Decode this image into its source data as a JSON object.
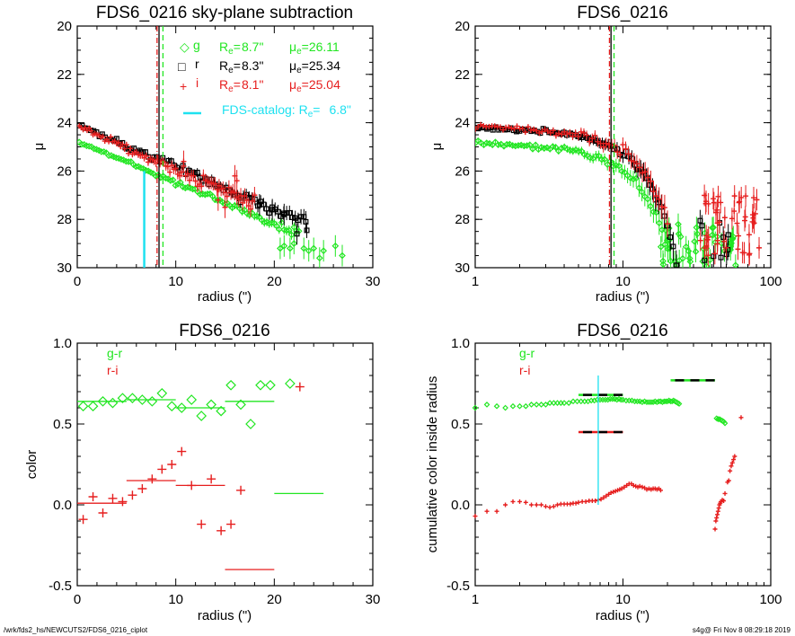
{
  "colors": {
    "g": "#22e622",
    "r": "#000000",
    "i": "#e61e1e",
    "catalog": "#1ee1f0",
    "axis": "#000000"
  },
  "footer": {
    "left": "/wrk/fds2_hs/NEWCUTS2/FDS6_0216_ciplot",
    "right": "s4g@  Fri Nov  8 08:29:18 2019"
  },
  "chart_data": [
    {
      "id": "profile-linear",
      "type": "scatter",
      "title": "FDS6_0216 sky-plane subtraction",
      "xlabel": "radius (\")",
      "ylabel": "μ",
      "xscale": "linear",
      "xlim": [
        0,
        30
      ],
      "ylim": [
        30,
        20
      ],
      "xticks": [
        0,
        10,
        20,
        30
      ],
      "xtick_labels": [
        "0",
        "10",
        "20",
        "30"
      ],
      "yticks": [
        20,
        22,
        24,
        26,
        28,
        30
      ],
      "ytick_labels": [
        "20",
        "22",
        "24",
        "26",
        "28",
        "30"
      ],
      "legend": {
        "placement": "top-right",
        "entries": [
          {
            "symbol": "◇",
            "band": "g",
            "re_label": "R",
            "re_sub": "e",
            "re_eq": "=",
            "re_value": "8.7\"",
            "mu_label": "μ",
            "mu_sub": "e",
            "mu_eq": "=",
            "mu_value": "26.11"
          },
          {
            "symbol": "□",
            "band": "r",
            "re_label": "R",
            "re_sub": "e",
            "re_eq": "=",
            "re_value": "8.3\"",
            "mu_label": "μ",
            "mu_sub": "e",
            "mu_eq": "=",
            "mu_value": "25.34"
          },
          {
            "symbol": "+",
            "band": "i",
            "re_label": "R",
            "re_sub": "e",
            "re_eq": "=",
            "re_value": "8.1\"",
            "mu_label": "μ",
            "mu_sub": "e",
            "mu_eq": "=",
            "mu_value": "25.04"
          }
        ],
        "catalog": {
          "label": "FDS-catalog: R",
          "sub": "e",
          "eq": "=",
          "value": "6.8\""
        }
      },
      "vlines": [
        {
          "x": 8.1,
          "band": "i",
          "style": "dashdot"
        },
        {
          "x": 8.3,
          "band": "r",
          "style": "solid"
        },
        {
          "x": 8.7,
          "band": "g",
          "style": "dashed"
        }
      ],
      "catalog_line": {
        "x": 6.8,
        "y_from": 30,
        "y_to": 26.0
      },
      "series": [
        {
          "name": "g",
          "marker": "diamond",
          "x0": 0.2,
          "x1": 22.5,
          "y0": 24.8,
          "y1": 28.6,
          "n": 90,
          "curve": 1.0,
          "noise": 0.05,
          "err": 0.1,
          "extra": [
            [
              21.0,
              29.1
            ],
            [
              22.0,
              29.0
            ],
            [
              23.0,
              29.2
            ],
            [
              23.5,
              29.3
            ],
            [
              24.0,
              29.2
            ],
            [
              24.6,
              29.6
            ],
            [
              25.0,
              29.3
            ],
            [
              26.2,
              29.1
            ],
            [
              26.9,
              29.5
            ],
            [
              21.6,
              29.2
            ],
            [
              20.6,
              29.2
            ]
          ]
        },
        {
          "name": "r",
          "marker": "square",
          "x0": 0.2,
          "x1": 23.3,
          "y0": 24.1,
          "y1": 28.2,
          "n": 80,
          "curve": 1.0,
          "noise": 0.07,
          "err": 0.15,
          "extra": [
            [
              22.3,
              28.6
            ],
            [
              21.0,
              27.8
            ],
            [
              19.8,
              27.6
            ],
            [
              18.5,
              27.4
            ],
            [
              23.2,
              28.1
            ]
          ]
        },
        {
          "name": "i",
          "marker": "plus",
          "x0": 0.2,
          "x1": 18.0,
          "y0": 24.15,
          "y1": 27.4,
          "n": 90,
          "curve": 1.0,
          "noise": 0.1,
          "err": 0.2,
          "extra": [
            [
              16.0,
              26.2
            ],
            [
              16.2,
              26.4
            ],
            [
              15.0,
              27.5
            ],
            [
              14.3,
              27.2
            ],
            [
              10.8,
              25.6
            ]
          ]
        }
      ]
    },
    {
      "id": "profile-log",
      "type": "scatter",
      "title": "FDS6_0216",
      "xlabel": "radius (\")",
      "ylabel": "μ",
      "xscale": "log",
      "xlim": [
        1,
        100
      ],
      "ylim": [
        30,
        20
      ],
      "xticks": [
        1,
        10,
        100
      ],
      "xtick_labels": [
        "1",
        "10",
        "100"
      ],
      "yticks": [
        20,
        22,
        24,
        26,
        28,
        30
      ],
      "ytick_labels": [
        "20",
        "22",
        "24",
        "26",
        "28",
        "30"
      ],
      "vlines": [
        {
          "x": 8.1,
          "band": "i",
          "style": "dashdot"
        },
        {
          "x": 8.3,
          "band": "r",
          "style": "solid"
        },
        {
          "x": 8.7,
          "band": "g",
          "style": "dashed"
        }
      ],
      "series": [
        {
          "name": "g",
          "marker": "diamond",
          "profile": "sersic",
          "y0": 24.85,
          "rs": 10.0,
          "k": 1.25,
          "xmin": 1.0,
          "xmax": 22.0,
          "n": 70,
          "noise": 0.06,
          "outer": {
            "xmin": 18,
            "xmax": 60,
            "ymin": 28.2,
            "ymax": 30.0,
            "n": 45
          }
        },
        {
          "name": "r",
          "marker": "square",
          "profile": "sersic",
          "y0": 24.2,
          "rs": 10.0,
          "k": 1.2,
          "xmin": 1.0,
          "xmax": 24.0,
          "n": 70,
          "noise": 0.06,
          "outer": {
            "xmin": 31,
            "xmax": 52,
            "ymin": 28.0,
            "ymax": 29.7,
            "n": 10
          }
        },
        {
          "name": "i",
          "marker": "plus",
          "profile": "sersic",
          "y0": 24.15,
          "rs": 10.0,
          "k": 1.15,
          "xmin": 1.0,
          "xmax": 20.0,
          "n": 70,
          "noise": 0.1,
          "outer": {
            "xmin": 32,
            "xmax": 85,
            "ymin": 27.0,
            "ymax": 29.5,
            "n": 50
          }
        }
      ]
    },
    {
      "id": "color-linear",
      "type": "scatter",
      "title": "FDS6_0216",
      "xlabel": "radius (\")",
      "ylabel": "color",
      "xscale": "linear",
      "xlim": [
        0,
        30
      ],
      "ylim": [
        -0.5,
        1.0
      ],
      "xticks": [
        0,
        10,
        20,
        30
      ],
      "xtick_labels": [
        "0",
        "10",
        "20",
        "30"
      ],
      "yticks": [
        -0.5,
        0.0,
        0.5,
        1.0
      ],
      "ytick_labels": [
        "-0.5",
        "0.0",
        "0.5",
        "1.0"
      ],
      "legend": {
        "placement": "top-left",
        "entries": [
          {
            "label": "g-r",
            "band": "g"
          },
          {
            "label": "r-i",
            "band": "i"
          }
        ]
      },
      "series": [
        {
          "name": "g-r",
          "marker": "diamond",
          "x": [
            0.6,
            1.6,
            2.6,
            3.6,
            4.6,
            5.6,
            6.6,
            7.6,
            8.6,
            9.6,
            10.6,
            11.6,
            12.6,
            13.6,
            14.6,
            15.6,
            16.6,
            17.6,
            18.6,
            19.6,
            21.6
          ],
          "y": [
            0.61,
            0.61,
            0.64,
            0.63,
            0.66,
            0.66,
            0.65,
            0.64,
            0.69,
            0.61,
            0.6,
            0.65,
            0.55,
            0.62,
            0.58,
            0.74,
            0.62,
            0.5,
            0.74,
            0.74,
            0.75
          ]
        },
        {
          "name": "r-i",
          "marker": "plus",
          "x": [
            0.6,
            1.6,
            2.6,
            3.6,
            4.6,
            5.6,
            6.6,
            7.6,
            8.6,
            9.6,
            10.6,
            11.6,
            12.6,
            13.6,
            14.6,
            15.6,
            16.6,
            22.6
          ],
          "y": [
            -0.09,
            0.05,
            -0.05,
            0.04,
            0.02,
            0.06,
            0.1,
            0.16,
            0.22,
            0.25,
            0.33,
            0.12,
            -0.12,
            0.16,
            -0.16,
            -0.12,
            0.09,
            0.73
          ]
        }
      ],
      "segments": [
        {
          "band": "g",
          "x": [
            0,
            5
          ],
          "y": 0.64
        },
        {
          "band": "g",
          "x": [
            5,
            10
          ],
          "y": 0.65
        },
        {
          "band": "g",
          "x": [
            10,
            15
          ],
          "y": 0.6
        },
        {
          "band": "g",
          "x": [
            15,
            20
          ],
          "y": 0.64
        },
        {
          "band": "g",
          "x": [
            20,
            25
          ],
          "y": 0.07
        },
        {
          "band": "i",
          "x": [
            0,
            5
          ],
          "y": 0.01
        },
        {
          "band": "i",
          "x": [
            5,
            10
          ],
          "y": 0.15
        },
        {
          "band": "i",
          "x": [
            10,
            15
          ],
          "y": 0.12
        },
        {
          "band": "i",
          "x": [
            15,
            20
          ],
          "y": -0.4
        }
      ]
    },
    {
      "id": "color-cumulative",
      "type": "scatter",
      "title": "FDS6_0216",
      "xlabel": "radius (\")",
      "ylabel": "cumulative color inside radius",
      "xscale": "log",
      "xlim": [
        1,
        100
      ],
      "ylim": [
        -0.5,
        1.0
      ],
      "xticks": [
        1,
        10,
        100
      ],
      "xtick_labels": [
        "1",
        "10",
        "100"
      ],
      "yticks": [
        -0.5,
        0.0,
        0.5,
        1.0
      ],
      "ytick_labels": [
        "-0.5",
        "0.0",
        "0.5",
        "1.0"
      ],
      "legend": {
        "placement": "top-left",
        "entries": [
          {
            "label": "g-r",
            "band": "g"
          },
          {
            "label": "r-i",
            "band": "i"
          }
        ]
      },
      "catalog_line": {
        "x": 6.8,
        "y_from": 0.0,
        "y_to": 0.8
      },
      "series": [
        {
          "name": "g-r",
          "marker": "diamond",
          "x": [
            1.0,
            1.2,
            1.4,
            1.6,
            1.8,
            2.0,
            2.2,
            2.4,
            2.6,
            2.8,
            3.0,
            3.2,
            3.4,
            3.6,
            3.8,
            4.0,
            4.3,
            4.6,
            4.9,
            5.2,
            5.5,
            5.8,
            6.1,
            6.4,
            6.7,
            7.0,
            7.3,
            7.6,
            7.9,
            8.2,
            8.5,
            8.8,
            9.1,
            9.4,
            9.7,
            10.0,
            10.5,
            11.0,
            11.5,
            12.0,
            12.5,
            13.0,
            13.5,
            14.0,
            14.5,
            15.0,
            15.5,
            16.0,
            16.5,
            17.0,
            17.5,
            18.0,
            18.5,
            19.0,
            19.5,
            20.0,
            20.5,
            21.0,
            21.5,
            22.0,
            22.5,
            23.0,
            23.5,
            24.0,
            43.0,
            44.0,
            45.0,
            46.0,
            47.0,
            48.0,
            49.0
          ],
          "y": [
            0.6,
            0.62,
            0.61,
            0.6,
            0.61,
            0.61,
            0.61,
            0.62,
            0.62,
            0.62,
            0.62,
            0.63,
            0.63,
            0.63,
            0.63,
            0.63,
            0.63,
            0.64,
            0.64,
            0.64,
            0.64,
            0.64,
            0.645,
            0.645,
            0.65,
            0.65,
            0.65,
            0.65,
            0.65,
            0.655,
            0.655,
            0.655,
            0.65,
            0.655,
            0.65,
            0.65,
            0.645,
            0.645,
            0.645,
            0.64,
            0.64,
            0.64,
            0.635,
            0.64,
            0.635,
            0.635,
            0.635,
            0.635,
            0.64,
            0.635,
            0.64,
            0.64,
            0.635,
            0.64,
            0.64,
            0.64,
            0.645,
            0.64,
            0.64,
            0.645,
            0.64,
            0.635,
            0.63,
            0.625,
            0.535,
            0.53,
            0.53,
            0.525,
            0.52,
            0.515,
            0.505
          ]
        },
        {
          "name": "r-i",
          "marker": "plus",
          "x": [
            1.0,
            1.2,
            1.4,
            1.6,
            1.8,
            2.0,
            2.2,
            2.4,
            2.6,
            2.8,
            3.0,
            3.2,
            3.4,
            3.6,
            3.8,
            4.0,
            4.2,
            4.4,
            4.6,
            4.8,
            5.0,
            5.3,
            5.6,
            5.9,
            6.2,
            6.5,
            6.8,
            7.1,
            7.4,
            7.7,
            8.0,
            8.3,
            8.6,
            8.9,
            9.2,
            9.5,
            9.8,
            10.2,
            10.6,
            11.0,
            11.4,
            11.8,
            12.2,
            12.6,
            13.0,
            13.5,
            14.0,
            14.5,
            15.0,
            15.5,
            16.0,
            16.5,
            17.0,
            17.5,
            18.0,
            42.0,
            42.5,
            43.0,
            43.5,
            44.0,
            44.5,
            45.0,
            45.5,
            46.0,
            47.0,
            48.0,
            49.0,
            51.0,
            52.0,
            53.0,
            54.0,
            55.0,
            56.0,
            57.0,
            63.0
          ],
          "y": [
            -0.07,
            -0.04,
            -0.04,
            0.0,
            0.02,
            0.02,
            0.015,
            0.0,
            0.0,
            0.0,
            -0.01,
            -0.015,
            -0.01,
            0.0,
            0.005,
            0.005,
            0.005,
            0.005,
            0.01,
            0.01,
            0.015,
            0.02,
            0.02,
            0.025,
            0.025,
            0.025,
            0.03,
            0.035,
            0.045,
            0.055,
            0.065,
            0.075,
            0.08,
            0.085,
            0.09,
            0.095,
            0.1,
            0.11,
            0.12,
            0.13,
            0.13,
            0.12,
            0.115,
            0.11,
            0.115,
            0.11,
            0.105,
            0.095,
            0.1,
            0.095,
            0.1,
            0.1,
            0.095,
            0.1,
            0.09,
            -0.15,
            -0.1,
            -0.08,
            -0.06,
            -0.04,
            -0.02,
            0.0,
            0.01,
            0.02,
            0.03,
            0.025,
            0.07,
            0.14,
            0.15,
            0.21,
            0.24,
            0.26,
            0.28,
            0.3,
            0.54
          ]
        }
      ],
      "dashed_segments": [
        {
          "band": "g",
          "x": [
            5,
            10
          ],
          "y": 0.68
        },
        {
          "band": "i",
          "x": [
            5,
            10
          ],
          "y": 0.45
        },
        {
          "band": "g",
          "x": [
            21,
            42
          ],
          "y": 0.77
        }
      ]
    }
  ]
}
